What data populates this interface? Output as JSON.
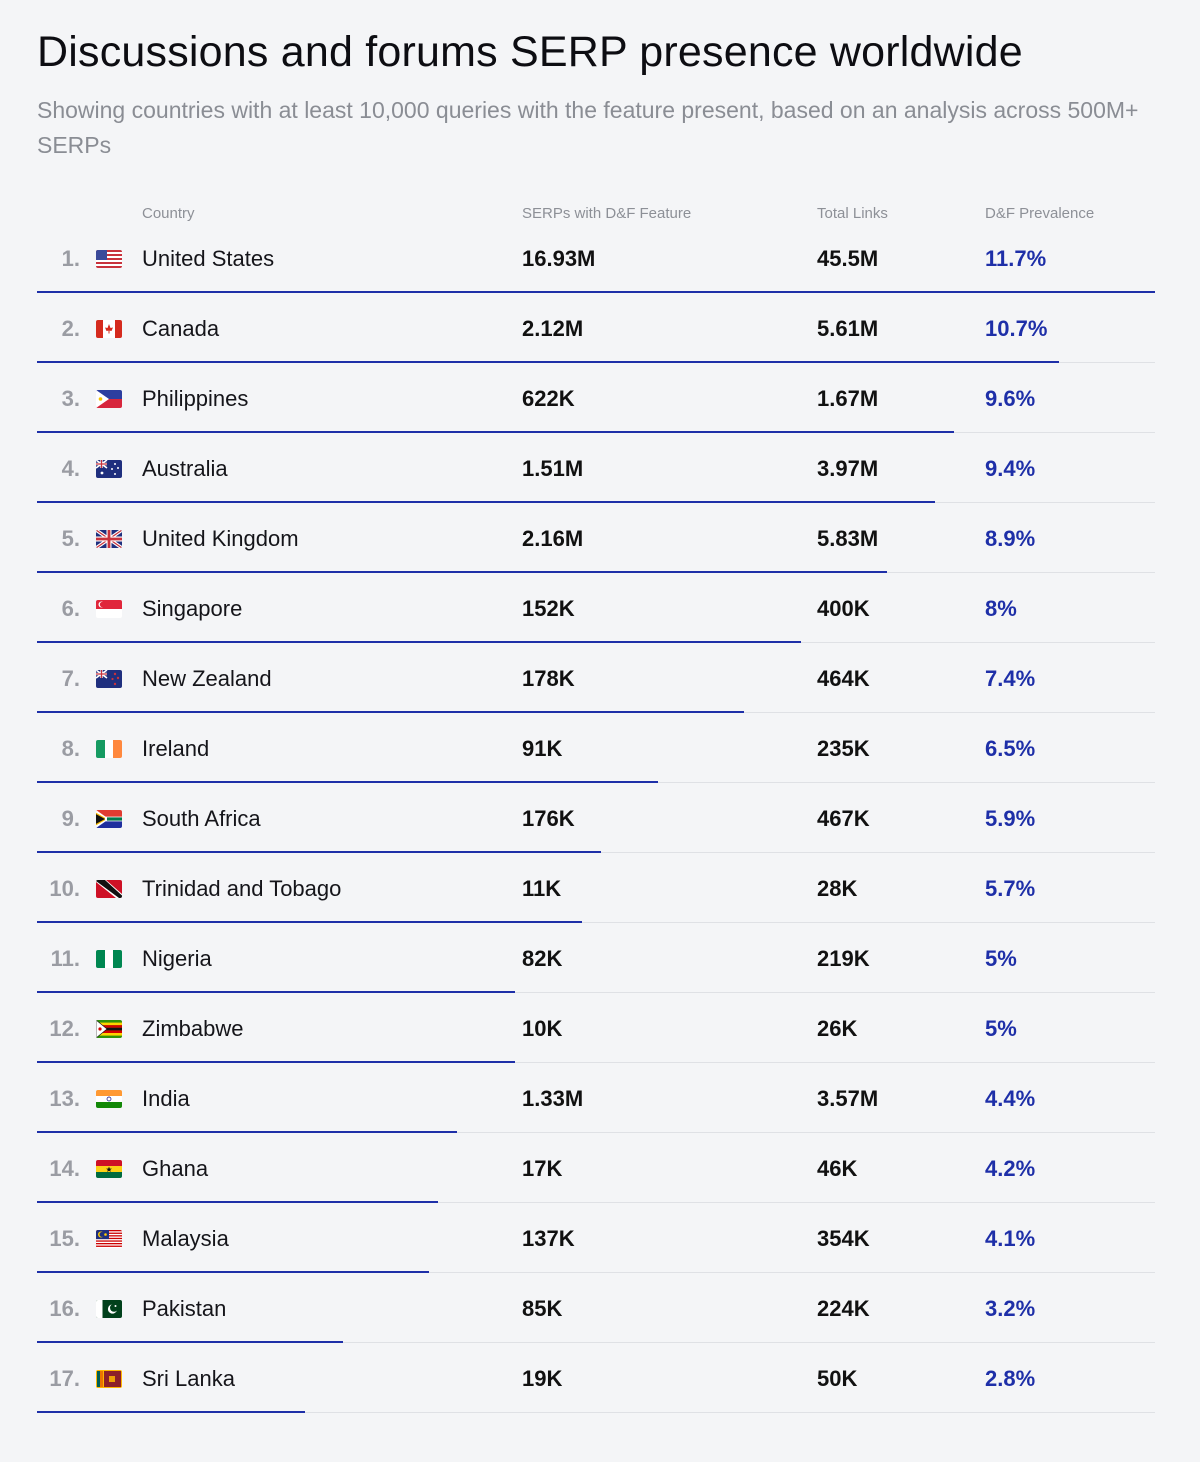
{
  "title": "Discussions and forums SERP presence worldwide",
  "subtitle": "Showing countries with at least 10,000 queries with the feature present, based on an analysis across 500M+ SERPs",
  "columns": {
    "country": "Country",
    "serps": "SERPs with D&F Feature",
    "links": "Total Links",
    "prevalence": "D&F Prevalence"
  },
  "colors": {
    "accent": "#1e2fa8",
    "rule": "#dfe1e5"
  },
  "chart_data": {
    "type": "table",
    "bar_max": 11.7,
    "rows": [
      {
        "rank": "1.",
        "country": "United States",
        "flag": "us-flag-icon",
        "serps": "16.93M",
        "links": "45.5M",
        "prevalence": "11.7%",
        "value": 11.7
      },
      {
        "rank": "2.",
        "country": "Canada",
        "flag": "ca-flag-icon",
        "serps": "2.12M",
        "links": "5.61M",
        "prevalence": "10.7%",
        "value": 10.7
      },
      {
        "rank": "3.",
        "country": "Philippines",
        "flag": "ph-flag-icon",
        "serps": "622K",
        "links": "1.67M",
        "prevalence": "9.6%",
        "value": 9.6
      },
      {
        "rank": "4.",
        "country": "Australia",
        "flag": "au-flag-icon",
        "serps": "1.51M",
        "links": "3.97M",
        "prevalence": "9.4%",
        "value": 9.4
      },
      {
        "rank": "5.",
        "country": "United Kingdom",
        "flag": "gb-flag-icon",
        "serps": "2.16M",
        "links": "5.83M",
        "prevalence": "8.9%",
        "value": 8.9
      },
      {
        "rank": "6.",
        "country": "Singapore",
        "flag": "sg-flag-icon",
        "serps": "152K",
        "links": "400K",
        "prevalence": "8%",
        "value": 8
      },
      {
        "rank": "7.",
        "country": "New Zealand",
        "flag": "nz-flag-icon",
        "serps": "178K",
        "links": "464K",
        "prevalence": "7.4%",
        "value": 7.4
      },
      {
        "rank": "8.",
        "country": "Ireland",
        "flag": "ie-flag-icon",
        "serps": "91K",
        "links": "235K",
        "prevalence": "6.5%",
        "value": 6.5
      },
      {
        "rank": "9.",
        "country": "South Africa",
        "flag": "za-flag-icon",
        "serps": "176K",
        "links": "467K",
        "prevalence": "5.9%",
        "value": 5.9
      },
      {
        "rank": "10.",
        "country": "Trinidad and Tobago",
        "flag": "tt-flag-icon",
        "serps": "11K",
        "links": "28K",
        "prevalence": "5.7%",
        "value": 5.7
      },
      {
        "rank": "11.",
        "country": "Nigeria",
        "flag": "ng-flag-icon",
        "serps": "82K",
        "links": "219K",
        "prevalence": "5%",
        "value": 5
      },
      {
        "rank": "12.",
        "country": "Zimbabwe",
        "flag": "zw-flag-icon",
        "serps": "10K",
        "links": "26K",
        "prevalence": "5%",
        "value": 5
      },
      {
        "rank": "13.",
        "country": "India",
        "flag": "in-flag-icon",
        "serps": "1.33M",
        "links": "3.57M",
        "prevalence": "4.4%",
        "value": 4.4
      },
      {
        "rank": "14.",
        "country": "Ghana",
        "flag": "gh-flag-icon",
        "serps": "17K",
        "links": "46K",
        "prevalence": "4.2%",
        "value": 4.2
      },
      {
        "rank": "15.",
        "country": "Malaysia",
        "flag": "my-flag-icon",
        "serps": "137K",
        "links": "354K",
        "prevalence": "4.1%",
        "value": 4.1
      },
      {
        "rank": "16.",
        "country": "Pakistan",
        "flag": "pk-flag-icon",
        "serps": "85K",
        "links": "224K",
        "prevalence": "3.2%",
        "value": 3.2
      },
      {
        "rank": "17.",
        "country": "Sri Lanka",
        "flag": "lk-flag-icon",
        "serps": "19K",
        "links": "50K",
        "prevalence": "2.8%",
        "value": 2.8
      }
    ]
  }
}
